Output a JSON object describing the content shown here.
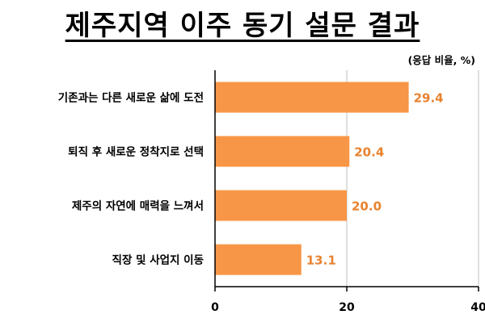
{
  "title": "제주지역 이주 동기 설문 결과",
  "unit_label": "(응답 비율, %)",
  "colors": {
    "bar": "#F79646",
    "value_text": "#E8822E",
    "axis": "#000000",
    "grid": "#BFBFBF"
  },
  "chart_data": {
    "type": "bar",
    "orientation": "horizontal",
    "title": "제주지역 이주 동기 설문 결과",
    "categories": [
      "기존과는 다른 새로운 삶에 도전",
      "퇴직 후 새로운 정착지로 선택",
      "제주의 자연에 매력을 느껴서",
      "직장 및 사업지 이동"
    ],
    "values": [
      29.4,
      20.4,
      20.0,
      13.1
    ],
    "value_labels": [
      "29.4",
      "20.4",
      "20.0",
      "13.1"
    ],
    "xlim": [
      0,
      40
    ],
    "xticks": [
      0,
      20,
      40
    ],
    "xtick_labels": [
      "0",
      "20",
      "40"
    ],
    "grid": true,
    "xlabel": "",
    "ylabel": ""
  }
}
